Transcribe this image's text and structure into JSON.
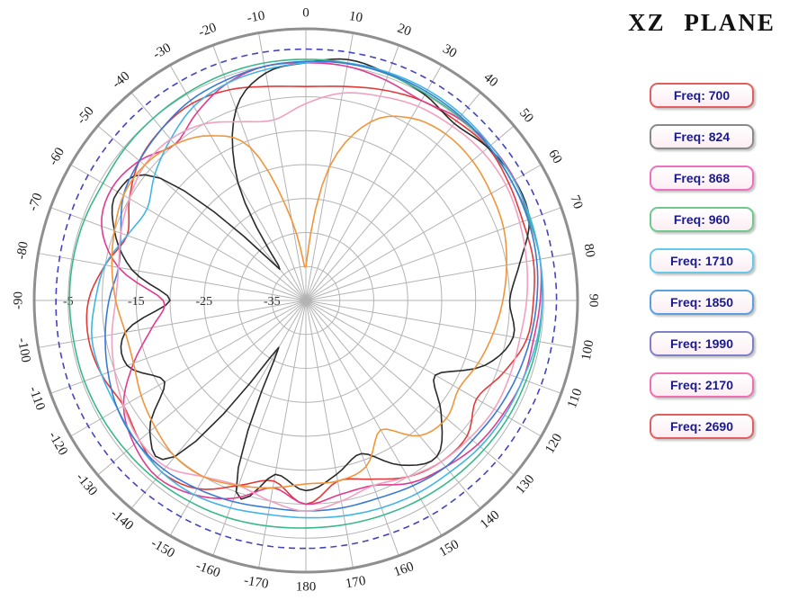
{
  "title": "XZ PLANE",
  "legend": {
    "items": [
      {
        "label": "Freq: 700",
        "color": "#e06060"
      },
      {
        "label": "Freq: 824",
        "color": "#8a8a8a"
      },
      {
        "label": "Freq: 868",
        "color": "#ef6fc0"
      },
      {
        "label": "Freq: 960",
        "color": "#6fc98f"
      },
      {
        "label": "Freq: 1710",
        "color": "#66c9e8"
      },
      {
        "label": "Freq: 1850",
        "color": "#5aa0e0"
      },
      {
        "label": "Freq: 1990",
        "color": "#8080c8"
      },
      {
        "label": "Freq: 2170",
        "color": "#ef6fb0"
      },
      {
        "label": "Freq: 2690",
        "color": "#e06060"
      }
    ]
  },
  "chart_data": {
    "type": "line",
    "polar": true,
    "title": "XZ PLANE",
    "grid": true,
    "legend_position": "right",
    "angle_unit": "deg",
    "angle_tick_step": 10,
    "angle_ticks": [
      0,
      10,
      20,
      30,
      40,
      50,
      60,
      70,
      80,
      90,
      100,
      110,
      120,
      130,
      140,
      150,
      160,
      170,
      180,
      -10,
      -20,
      -30,
      -40,
      -50,
      -60,
      -70,
      -80,
      -90,
      -100,
      -110,
      -120,
      -130,
      -140,
      -150,
      -160,
      -170
    ],
    "radial_range": [
      -40,
      0
    ],
    "radial_tick_values": [
      -5,
      -15,
      -25,
      -35
    ],
    "radial_tick_labels": [
      "-5",
      "-15",
      "-25",
      "-35"
    ],
    "rings_every_db": 5,
    "angles": [
      -180,
      -170,
      -160,
      -150,
      -140,
      -130,
      -120,
      -110,
      -100,
      -90,
      -80,
      -70,
      -60,
      -50,
      -40,
      -30,
      -20,
      -10,
      0,
      10,
      20,
      30,
      40,
      50,
      60,
      70,
      80,
      90,
      100,
      110,
      120,
      130,
      140,
      150,
      160,
      170
    ],
    "series": [
      {
        "name": "Freq: 700",
        "color": "#e03a3a",
        "dash": null,
        "values": [
          -10,
          -13,
          -11,
          -8,
          -7,
          -8,
          -9,
          -8,
          -7.5,
          -8,
          -10,
          -12,
          -10,
          -8,
          -7,
          -6.5,
          -7,
          -8,
          -8.5,
          -8,
          -7,
          -6,
          -5.5,
          -5,
          -5.5,
          -6,
          -6,
          -6.5,
          -7,
          -9,
          -11,
          -9,
          -9,
          -10,
          -12,
          -13
        ]
      },
      {
        "name": "Freq: 824",
        "color": "#2a2a2a",
        "dash": null,
        "values": [
          -12,
          -14,
          -10,
          -32,
          -10,
          -10,
          -16,
          -12,
          -13,
          -20,
          -14,
          -10,
          -8,
          -12,
          -34,
          -20,
          -10,
          -6,
          -5,
          -4,
          -4.5,
          -5,
          -6,
          -5,
          -4.5,
          -5,
          -8,
          -10,
          -9,
          -12,
          -18,
          -14,
          -10,
          -12,
          -16,
          -14
        ]
      },
      {
        "name": "Freq: 868",
        "color": "#e23a8e",
        "dash": null,
        "values": [
          -10,
          -12,
          -9,
          -7,
          -6,
          -7,
          -9,
          -13,
          -17,
          -19,
          -12,
          -8,
          -7,
          -8,
          -10,
          -8,
          -6,
          -5,
          -5,
          -5,
          -5.5,
          -6,
          -5,
          -4.5,
          -4.5,
          -5,
          -5,
          -5.5,
          -6,
          -6,
          -6.5,
          -7,
          -8,
          -9,
          -11,
          -11
        ]
      },
      {
        "name": "Freq: 960",
        "color": "#3ab88a",
        "dash": null,
        "values": [
          -6.5,
          -6.3,
          -6,
          -5.8,
          -5.6,
          -5.5,
          -5.4,
          -5.3,
          -5.3,
          -5.2,
          -5.2,
          -5.3,
          -5.5,
          -5.2,
          -5,
          -4.8,
          -4.6,
          -4.5,
          -4.5,
          -4.5,
          -4.6,
          -4.8,
          -4.8,
          -4.8,
          -5,
          -5,
          -5,
          -5.2,
          -5.3,
          -5.5,
          -5.6,
          -5.8,
          -6,
          -6.2,
          -6.4,
          -6.5
        ]
      },
      {
        "name": "Freq: 1710",
        "color": "#42b4e6",
        "dash": null,
        "values": [
          -8,
          -8,
          -7.5,
          -7,
          -7,
          -7.5,
          -8,
          -8,
          -8,
          -9,
          -10,
          -12,
          -13,
          -11,
          -9,
          -7,
          -6,
          -5.5,
          -5,
          -4.5,
          -4.3,
          -4.2,
          -4.3,
          -4.5,
          -4.6,
          -4.8,
          -5,
          -5.2,
          -5.5,
          -6,
          -6.2,
          -6.5,
          -7,
          -7.2,
          -7.5,
          -7.8
        ]
      },
      {
        "name": "Freq: 1850",
        "color": "#3a7ad2",
        "dash": null,
        "values": [
          -9,
          -9,
          -8.5,
          -8,
          -7.5,
          -7.5,
          -8,
          -9,
          -10,
          -11,
          -12,
          -11,
          -9,
          -8,
          -7,
          -6,
          -5.5,
          -5,
          -4.8,
          -4.6,
          -4.5,
          -4.5,
          -4.6,
          -4.8,
          -5,
          -5.2,
          -5.5,
          -6,
          -6.5,
          -7,
          -7.5,
          -8,
          -8,
          -8.5,
          -9,
          -9
        ]
      },
      {
        "name": "Freq: 1990",
        "color": "#4343c0",
        "dash": "7 5",
        "values": [
          -3.5,
          -3.4,
          -3.3,
          -3.2,
          -3.1,
          -3,
          -3,
          -3,
          -3.1,
          -3.2,
          -3.2,
          -3.1,
          -3,
          -2.9,
          -2.8,
          -2.8,
          -2.8,
          -2.9,
          -3,
          -2.9,
          -2.8,
          -2.8,
          -2.9,
          -3,
          -3,
          -3,
          -3.1,
          -3.1,
          -3.2,
          -3.2,
          -3.3,
          -3.3,
          -3.4,
          -3.4,
          -3.5,
          -3.5
        ]
      },
      {
        "name": "Freq: 2170",
        "color": "#f2a0c0",
        "dash": null,
        "values": [
          -9,
          -10,
          -11,
          -10,
          -8,
          -8,
          -9,
          -10,
          -11,
          -12,
          -12,
          -11,
          -10,
          -9,
          -9,
          -10,
          -12,
          -13,
          -11,
          -9,
          -8,
          -7,
          -6.5,
          -6,
          -6,
          -6.5,
          -7,
          -7.5,
          -8,
          -8,
          -8,
          -8.5,
          -9,
          -10,
          -11,
          -10
        ]
      },
      {
        "name": "Freq: 2690",
        "color": "#f0953a",
        "dash": null,
        "values": [
          -13,
          -12,
          -11,
          -10,
          -10,
          -11,
          -12,
          -13,
          -13,
          -12,
          -11,
          -10,
          -9,
          -9,
          -10,
          -12,
          -16,
          -28,
          -35,
          -20,
          -12,
          -9,
          -8,
          -8,
          -8.5,
          -9,
          -10,
          -11,
          -12,
          -13,
          -14,
          -13,
          -14,
          -18,
          -14,
          -13
        ]
      }
    ]
  }
}
